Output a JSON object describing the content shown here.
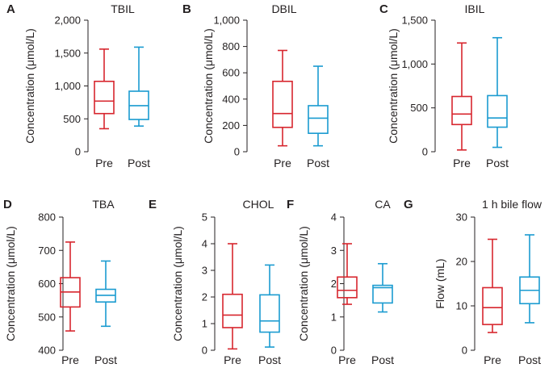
{
  "colors": {
    "pre": "#d7262e",
    "post": "#1a9bd0",
    "axis": "#231f20"
  },
  "chart_data": [
    {
      "type": "boxplot",
      "letter": "A",
      "title": "TBIL",
      "ylabel": "Concentration (μmol/L)",
      "ylim": [
        0,
        2000
      ],
      "ticks": [
        0,
        500,
        1000,
        1500,
        2000
      ],
      "tick_labels": [
        "0",
        "500",
        "1,000",
        "1,500",
        "2,000"
      ],
      "categories": [
        "Pre",
        "Post"
      ],
      "boxes": [
        {
          "name": "Pre",
          "min": 350,
          "q1": 580,
          "median": 770,
          "q3": 1070,
          "max": 1560
        },
        {
          "name": "Post",
          "min": 390,
          "q1": 490,
          "median": 700,
          "q3": 920,
          "max": 1590
        }
      ]
    },
    {
      "type": "boxplot",
      "letter": "B",
      "title": "DBIL",
      "ylabel": "Concentration (μmol/L)",
      "ylim": [
        0,
        1000
      ],
      "ticks": [
        0,
        200,
        400,
        600,
        800,
        1000
      ],
      "tick_labels": [
        "0",
        "200",
        "400",
        "600",
        "800",
        "1,000"
      ],
      "categories": [
        "Pre",
        "Post"
      ],
      "boxes": [
        {
          "name": "Pre",
          "min": 45,
          "q1": 185,
          "median": 290,
          "q3": 535,
          "max": 770
        },
        {
          "name": "Post",
          "min": 45,
          "q1": 140,
          "median": 255,
          "q3": 350,
          "max": 650
        }
      ]
    },
    {
      "type": "boxplot",
      "letter": "C",
      "title": "IBIL",
      "ylabel": "Concentration (μmol/L)",
      "ylim": [
        0,
        1500
      ],
      "ticks": [
        0,
        500,
        1000,
        1500
      ],
      "tick_labels": [
        "0",
        "500",
        "1,000",
        "1,500"
      ],
      "categories": [
        "Pre",
        "Post"
      ],
      "boxes": [
        {
          "name": "Pre",
          "min": 20,
          "q1": 310,
          "median": 430,
          "q3": 630,
          "max": 1240
        },
        {
          "name": "Post",
          "min": 50,
          "q1": 280,
          "median": 385,
          "q3": 640,
          "max": 1300
        }
      ]
    },
    {
      "type": "boxplot",
      "letter": "D",
      "title": "TBA",
      "ylabel": "Concentration (μmol/L)",
      "ylim": [
        400,
        800
      ],
      "ticks": [
        400,
        500,
        600,
        700,
        800
      ],
      "tick_labels": [
        "400",
        "500",
        "600",
        "700",
        "800"
      ],
      "categories": [
        "Pre",
        "Post"
      ],
      "boxes": [
        {
          "name": "Pre",
          "min": 458,
          "q1": 530,
          "median": 575,
          "q3": 618,
          "max": 725
        },
        {
          "name": "Post",
          "min": 472,
          "q1": 545,
          "median": 565,
          "q3": 583,
          "max": 668
        }
      ]
    },
    {
      "type": "boxplot",
      "letter": "E",
      "title": "CHOL",
      "ylabel": "Concentration (μmol/L)",
      "ylim": [
        0,
        5
      ],
      "ticks": [
        0,
        1,
        2,
        3,
        4,
        5
      ],
      "tick_labels": [
        "0",
        "1",
        "2",
        "3",
        "4",
        "5"
      ],
      "categories": [
        "Pre",
        "Post"
      ],
      "boxes": [
        {
          "name": "Pre",
          "min": 0.05,
          "q1": 0.85,
          "median": 1.32,
          "q3": 2.1,
          "max": 4.0
        },
        {
          "name": "Post",
          "min": 0.12,
          "q1": 0.68,
          "median": 1.1,
          "q3": 2.08,
          "max": 3.2
        }
      ]
    },
    {
      "type": "boxplot",
      "letter": "F",
      "title": "CA",
      "ylabel": "Concentration (μmol/L)",
      "ylim": [
        0,
        4
      ],
      "ticks": [
        0,
        1,
        2,
        3,
        4
      ],
      "tick_labels": [
        "0",
        "1",
        "2",
        "3",
        "4"
      ],
      "categories": [
        "Pre",
        "Post"
      ],
      "boxes": [
        {
          "name": "Pre",
          "min": 1.38,
          "q1": 1.58,
          "median": 1.8,
          "q3": 2.2,
          "max": 3.2
        },
        {
          "name": "Post",
          "min": 1.15,
          "q1": 1.42,
          "median": 1.88,
          "q3": 1.95,
          "max": 2.6
        }
      ]
    },
    {
      "type": "boxplot",
      "letter": "G",
      "title": "1 h bile flow",
      "ylabel": "Flow (mL)",
      "ylim": [
        0,
        30
      ],
      "ticks": [
        0,
        10,
        20,
        30
      ],
      "tick_labels": [
        "0",
        "10",
        "20",
        "30"
      ],
      "categories": [
        "Pre",
        "Post"
      ],
      "boxes": [
        {
          "name": "Pre",
          "min": 4,
          "q1": 5.8,
          "median": 9.6,
          "q3": 14.1,
          "max": 25
        },
        {
          "name": "Post",
          "min": 6.2,
          "q1": 10.5,
          "median": 13.5,
          "q3": 16.5,
          "max": 26
        }
      ]
    }
  ]
}
